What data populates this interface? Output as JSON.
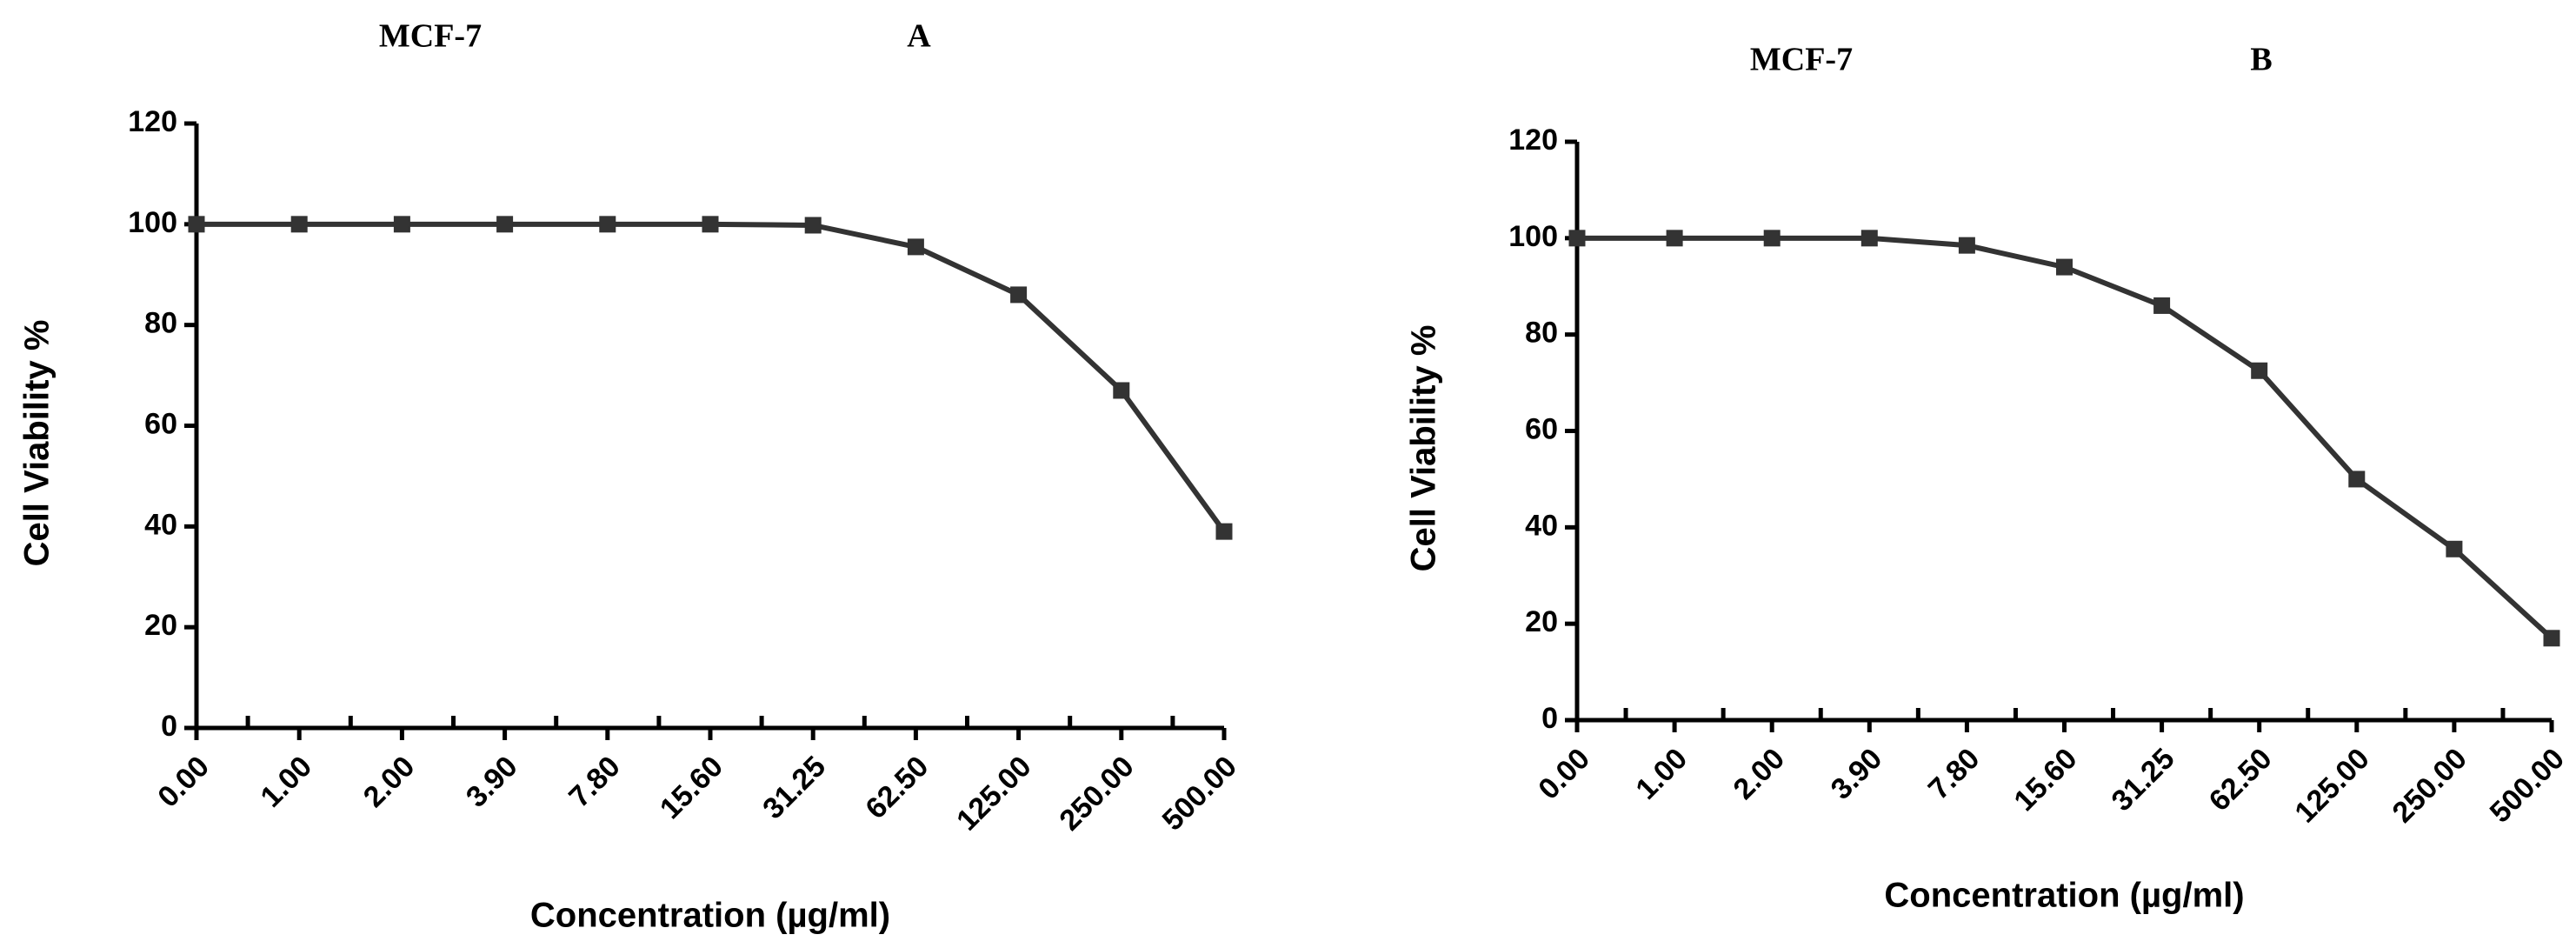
{
  "chart_data": [
    {
      "type": "line",
      "title": "MCF-7",
      "panel_label": "A",
      "xlabel": "Concentration (µg/ml)",
      "ylabel": "Cell Viability %",
      "ylim": [
        0,
        120
      ],
      "yticks": [
        "0",
        "20",
        "40",
        "60",
        "80",
        "100",
        "120"
      ],
      "categories": [
        "0.00",
        "1.00",
        "2.00",
        "3.90",
        "7.80",
        "15.60",
        "31.25",
        "62.50",
        "125.00",
        "250.00",
        "500.00"
      ],
      "series": [
        {
          "name": "MCF-7",
          "values": [
            100,
            100,
            100,
            100,
            100,
            100,
            99.8,
            95.5,
            86,
            67,
            39
          ]
        }
      ]
    },
    {
      "type": "line",
      "title": "MCF-7",
      "panel_label": "B",
      "xlabel": "Concentration (µg/ml)",
      "ylabel": "Cell Viability %",
      "ylim": [
        0,
        120
      ],
      "yticks": [
        "0",
        "20",
        "40",
        "60",
        "80",
        "100",
        "120"
      ],
      "categories": [
        "0.00",
        "1.00",
        "2.00",
        "3.90",
        "7.80",
        "15.60",
        "31.25",
        "62.50",
        "125.00",
        "250.00",
        "500.00"
      ],
      "series": [
        {
          "name": "MCF-7",
          "values": [
            100,
            100,
            100,
            100,
            98.5,
            94,
            86,
            72.5,
            50,
            35.5,
            17
          ]
        }
      ]
    }
  ]
}
